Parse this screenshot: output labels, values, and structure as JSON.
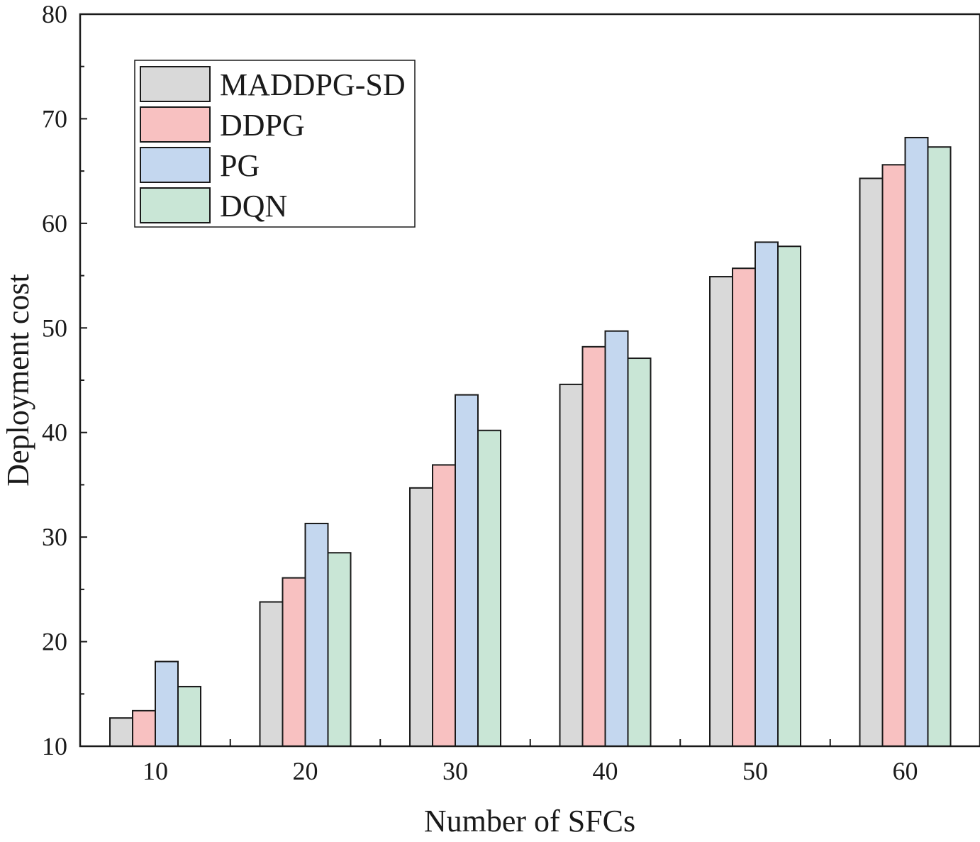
{
  "chart_data": {
    "type": "bar",
    "title": "",
    "xlabel": "Number of SFCs",
    "ylabel": "Deployment cost",
    "categories": [
      "10",
      "20",
      "30",
      "40",
      "50",
      "60"
    ],
    "ylim": [
      10,
      80
    ],
    "yticks": [
      "10",
      "20",
      "30",
      "40",
      "50",
      "60",
      "70",
      "80"
    ],
    "legend_position": "top-left",
    "series": [
      {
        "name": "MADDPG-SD",
        "color": "#d9d9d9",
        "values": [
          12.7,
          23.8,
          34.7,
          44.6,
          54.9,
          64.3
        ]
      },
      {
        "name": "DDPG",
        "color": "#f8c1c1",
        "values": [
          13.4,
          26.1,
          36.9,
          48.2,
          55.7,
          65.6
        ]
      },
      {
        "name": "PG",
        "color": "#c4d7ef",
        "values": [
          18.1,
          31.3,
          43.6,
          49.7,
          58.2,
          68.2
        ]
      },
      {
        "name": "DQN",
        "color": "#c9e6d6",
        "values": [
          15.7,
          28.5,
          40.2,
          47.1,
          57.8,
          67.3
        ]
      }
    ]
  }
}
